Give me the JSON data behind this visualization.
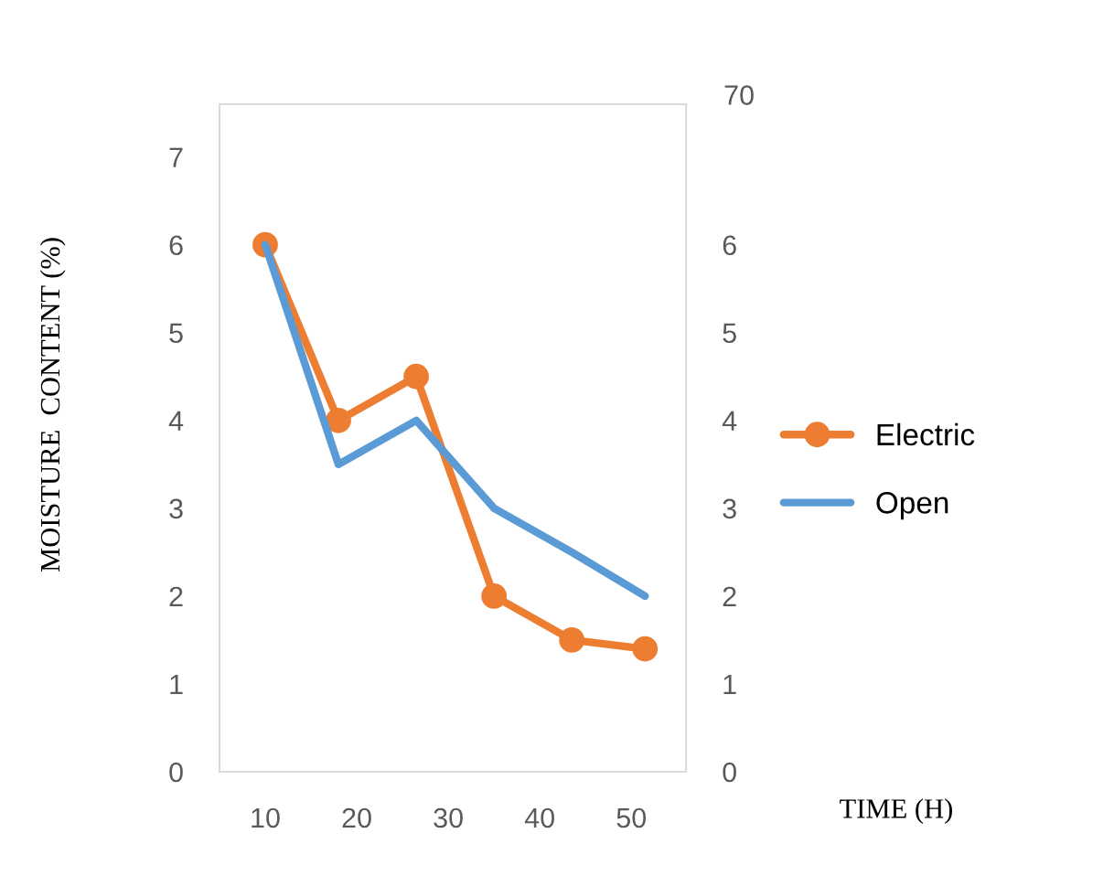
{
  "chart_data": {
    "type": "line",
    "xlabel": "TIME (H)",
    "ylabel": "MOISTURE  CONTENT (%)",
    "x": [
      10,
      18,
      26.5,
      35,
      43.5,
      51.5
    ],
    "series": [
      {
        "name": "Electric",
        "color": "#ed7d31",
        "values": [
          6,
          4,
          4.5,
          2,
          1.5,
          1.4
        ],
        "marker": "circle"
      },
      {
        "name": "Open",
        "color": "#5b9bd5",
        "values": [
          6,
          3.5,
          4,
          3,
          2.5,
          2
        ],
        "marker": "none"
      }
    ],
    "xlim": [
      5,
      56
    ],
    "xticks": [
      10,
      20,
      30,
      40,
      50
    ],
    "ylim": [
      0,
      7.6
    ],
    "yticks": [
      0,
      1,
      2,
      3,
      4,
      5,
      6,
      7
    ],
    "y2lim": [
      0,
      7.6
    ],
    "y2ticks": [
      0,
      1,
      2,
      3,
      4,
      5,
      6
    ],
    "annotations": [
      "70"
    ],
    "grid": false,
    "legend": "right",
    "line_style": "solid"
  }
}
